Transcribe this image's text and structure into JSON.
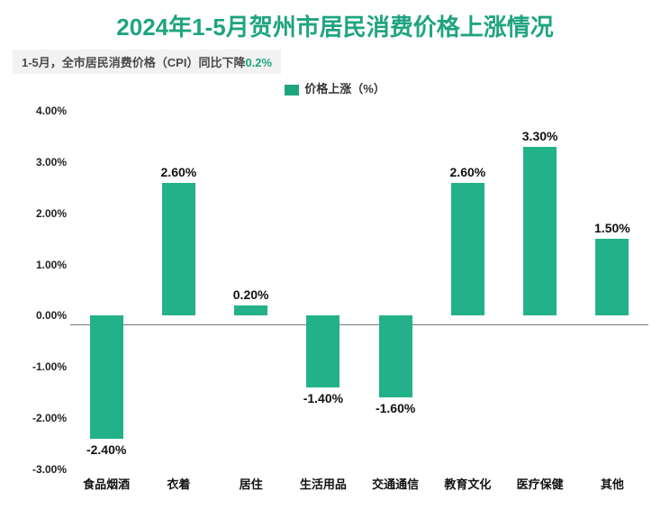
{
  "title": {
    "text": "2024年1-5月贺州市居民消费价格上涨情况",
    "color": "#1fa480",
    "fontsize": 26
  },
  "subtitle": {
    "prefix": "1-5月，全市居民消费价格（CPI）同比下降",
    "highlight": "0.2%",
    "highlight_color": "#1fa480",
    "fontsize": 13,
    "text_color": "#4a4a4a",
    "bg_color": "#f2f2f2"
  },
  "legend": {
    "label": "价格上涨（%）",
    "color": "#1fa480",
    "fontsize": 13,
    "text_color": "#333333"
  },
  "chart": {
    "type": "bar",
    "categories": [
      "食品烟酒",
      "衣着",
      "居住",
      "生活用品",
      "交通通信",
      "教育文化",
      "医疗保健",
      "其他"
    ],
    "values": [
      -2.4,
      2.6,
      0.2,
      -1.4,
      -1.6,
      2.6,
      3.3,
      1.5
    ],
    "value_labels": [
      "-2.40%",
      "2.60%",
      "0.20%",
      "-1.40%",
      "-1.60%",
      "2.60%",
      "3.30%",
      "1.50%"
    ],
    "bar_color": "#23b18a",
    "ylim": [
      -3,
      4
    ],
    "ytick_step": 1,
    "ytick_labels": [
      "-3.00%",
      "-2.00%",
      "-1.00%",
      "0.00%",
      "1.00%",
      "2.00%",
      "3.00%",
      "4.00%"
    ],
    "axis_label_fontsize": 12,
    "axis_label_color": "#222222",
    "zero_line_color": "#777777",
    "value_label_fontsize": 14,
    "value_label_color": "#111111",
    "xcat_fontsize": 13,
    "xcat_color": "#111111",
    "bar_width_ratio": 0.46,
    "background_color": "#ffffff"
  }
}
